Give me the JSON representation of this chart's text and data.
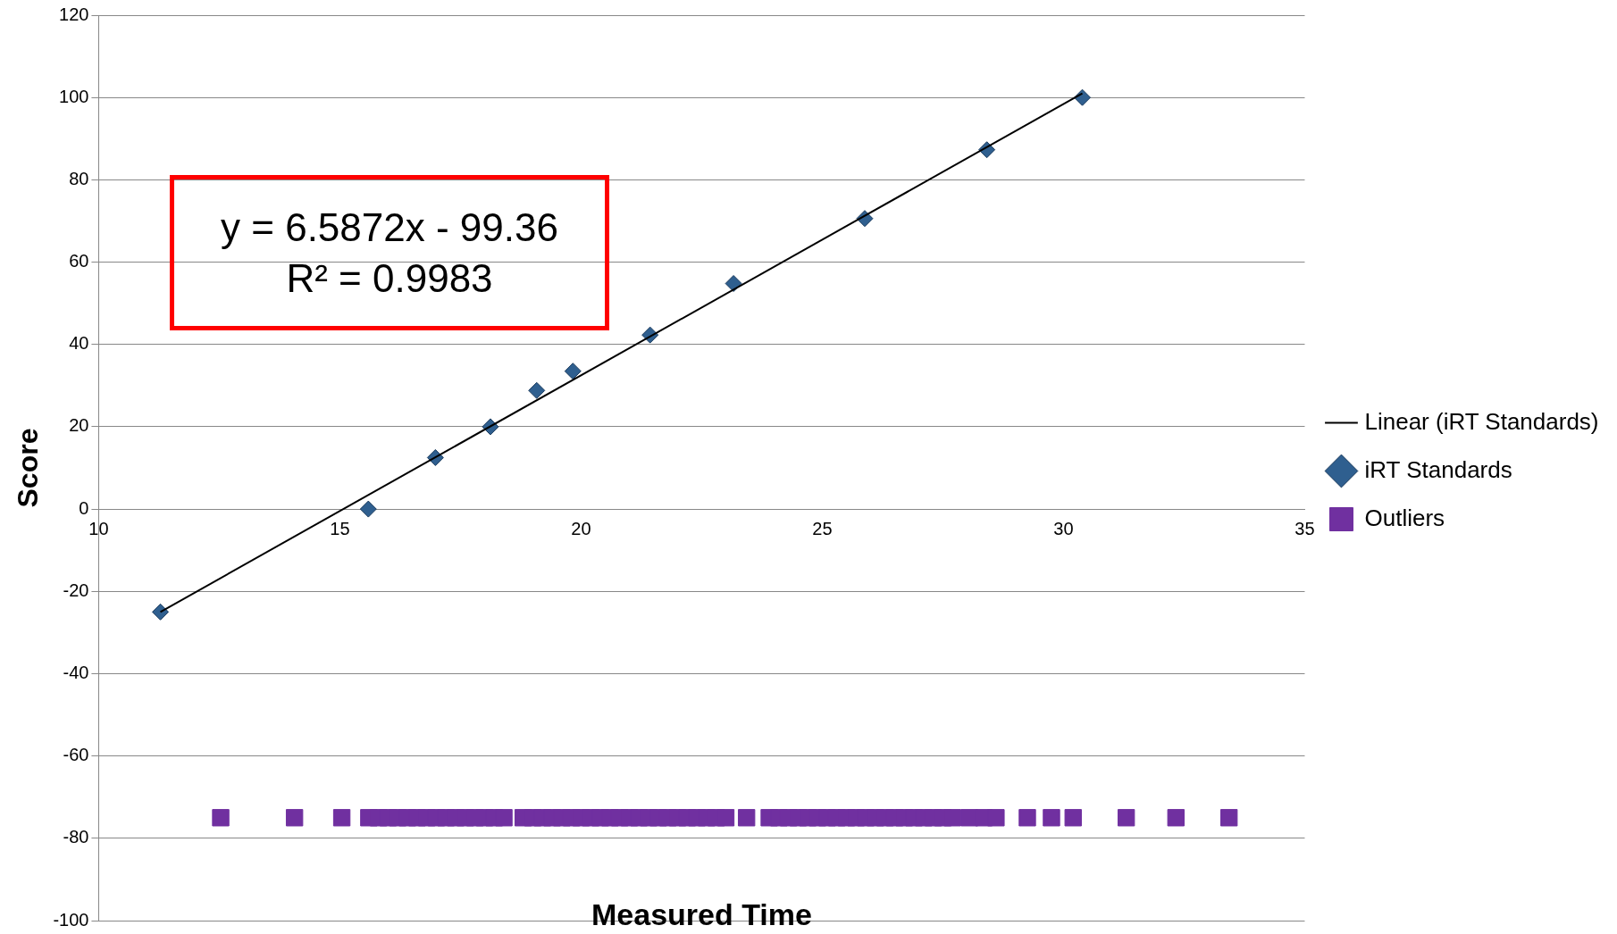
{
  "chart_data": {
    "type": "scatter",
    "xlabel": "Measured Time",
    "ylabel": "Score",
    "xlim": [
      10,
      35
    ],
    "xticks": [
      10,
      15,
      20,
      25,
      30,
      35
    ],
    "ylim": [
      -100,
      120
    ],
    "yticks": [
      -100,
      -80,
      -60,
      -40,
      -20,
      0,
      20,
      40,
      60,
      80,
      100,
      120
    ],
    "grid": "y",
    "legend": "right",
    "annotations": [
      "y = 6.5872x - 99.36",
      "R² = 0.9983"
    ],
    "series": [
      {
        "name": "iRT Standards",
        "marker": "diamond",
        "color": "#2f5f8f",
        "x": [
          11.28,
          15.59,
          16.98,
          18.12,
          19.08,
          19.83,
          21.43,
          23.16,
          25.88,
          28.41,
          30.39
        ],
        "values": [
          -25,
          0,
          12.5,
          20,
          28.8,
          33.5,
          42.3,
          54.8,
          70.6,
          87.3,
          100
        ]
      },
      {
        "name": "Outliers",
        "marker": "square",
        "color": "#7030a0",
        "x": [
          12.53,
          14.06,
          15.04,
          15.6,
          15.8,
          16.0,
          16.2,
          16.4,
          16.6,
          16.8,
          17.0,
          17.2,
          17.4,
          17.6,
          17.8,
          18.0,
          18.2,
          18.4,
          18.8,
          19.0,
          19.2,
          19.4,
          19.6,
          19.8,
          20.0,
          20.2,
          20.4,
          20.6,
          20.8,
          21.0,
          21.2,
          21.4,
          21.6,
          21.8,
          22.0,
          22.2,
          22.4,
          22.6,
          22.8,
          23.0,
          23.43,
          23.9,
          24.1,
          24.3,
          24.5,
          24.7,
          24.9,
          25.1,
          25.3,
          25.5,
          25.7,
          25.9,
          26.1,
          26.3,
          26.5,
          26.7,
          26.9,
          27.1,
          27.3,
          27.5,
          27.7,
          28.05,
          28.35,
          28.6,
          29.25,
          29.75,
          30.2,
          31.3,
          32.33,
          33.43
        ],
        "values": [
          -75,
          -75,
          -75,
          -75,
          -75,
          -75,
          -75,
          -75,
          -75,
          -75,
          -75,
          -75,
          -75,
          -75,
          -75,
          -75,
          -75,
          -75,
          -75,
          -75,
          -75,
          -75,
          -75,
          -75,
          -75,
          -75,
          -75,
          -75,
          -75,
          -75,
          -75,
          -75,
          -75,
          -75,
          -75,
          -75,
          -75,
          -75,
          -75,
          -75,
          -75,
          -75,
          -75,
          -75,
          -75,
          -75,
          -75,
          -75,
          -75,
          -75,
          -75,
          -75,
          -75,
          -75,
          -75,
          -75,
          -75,
          -75,
          -75,
          -75,
          -75,
          -75,
          -75,
          -75,
          -75,
          -75,
          -75,
          -75,
          -75,
          -75
        ]
      },
      {
        "name": "Linear (iRT Standards)",
        "type": "line",
        "marker": "none",
        "color": "#000000",
        "x": [
          11.28,
          30.39
        ],
        "values": [
          -25,
          101
        ]
      }
    ]
  }
}
